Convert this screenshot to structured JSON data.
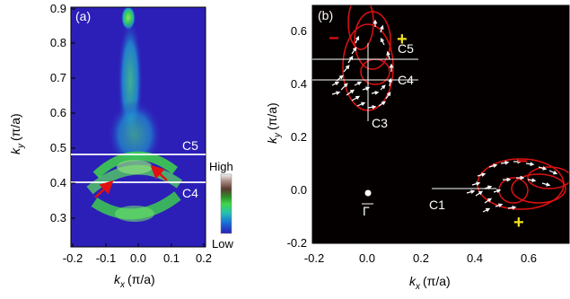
{
  "figure": {
    "panel_a": {
      "label": "(a)",
      "xlabel_k": "k",
      "xlabel_sub": "x",
      "xlabel_unit": "(π/a)",
      "ylabel_k": "k",
      "ylabel_sub": "y",
      "ylabel_unit": "(π/a)",
      "cut_labels": [
        "C5",
        "C4"
      ],
      "colorbar_high": "High",
      "colorbar_low": "Low"
    },
    "panel_b": {
      "label": "(b)",
      "xlabel_k": "k",
      "xlabel_sub": "x",
      "xlabel_unit": "(π/a)",
      "ylabel_k": "k",
      "ylabel_sub": "y",
      "ylabel_unit": "(π/a)",
      "cut_labels": [
        "C5",
        "C4",
        "C3",
        "C1"
      ],
      "gamma_label": "Γ",
      "signs": [
        "−",
        "+",
        "−",
        "+"
      ]
    }
  },
  "chart_data": [
    {
      "type": "heatmap",
      "panel": "(a)",
      "x_ticks": [
        "-0.2",
        "-0.1",
        "0.0",
        "0.1",
        "0.2"
      ],
      "y_ticks": [
        "0.3",
        "0.4",
        "0.5",
        "0.6",
        "0.7",
        "0.8",
        "0.9"
      ],
      "xlim": [
        -0.2,
        0.2
      ],
      "ylim": [
        0.25,
        0.9
      ],
      "cuts": [
        {
          "name": "C5",
          "ky": 0.48
        },
        {
          "name": "C4",
          "ky": 0.4
        }
      ],
      "arrows_toward": [
        {
          "from": [
            -0.14,
            0.33
          ],
          "to": [
            -0.1,
            0.38
          ]
        },
        {
          "from": [
            0.09,
            0.38
          ],
          "to": [
            0.05,
            0.41
          ]
        }
      ],
      "colorbar": {
        "top": "High",
        "bottom": "Low"
      },
      "colors": [
        "#2c1fb8",
        "#1e7bd8",
        "#22c1a0",
        "#3fd648",
        "#a7e07a",
        "#8a6a5a",
        "#d9d9d9"
      ]
    },
    {
      "type": "scatter",
      "panel": "(b)",
      "x_ticks": [
        "-0.2",
        "0.0",
        "0.2",
        "0.4",
        "0.6"
      ],
      "y_ticks": [
        "-0.2",
        "0.0",
        "0.2",
        "0.4",
        "0.6"
      ],
      "xlim": [
        -0.2,
        0.68
      ],
      "ylim": [
        -0.2,
        0.7
      ],
      "cuts": [
        {
          "name": "C5",
          "ky": 0.49,
          "x_range": [
            -0.2,
            0.2
          ]
        },
        {
          "name": "C4",
          "ky": 0.42,
          "x_range": [
            -0.2,
            0.2
          ]
        },
        {
          "name": "C3",
          "kx": 0.0,
          "y_range": [
            0.3,
            0.55
          ]
        },
        {
          "name": "C1",
          "ky": 0.01,
          "x_range": [
            0.35,
            0.57
          ]
        }
      ],
      "gamma_point": [
        0.0,
        0.0
      ],
      "signs": [
        {
          "text": "−",
          "x": -0.12,
          "y": 0.6,
          "color": "#e01010"
        },
        {
          "text": "+",
          "x": 0.12,
          "y": 0.6,
          "color": "#f0e020"
        },
        {
          "text": "−",
          "x": 0.54,
          "y": 0.1,
          "color": "#e01010"
        },
        {
          "text": "+",
          "x": 0.58,
          "y": -0.13,
          "color": "#f0e020"
        }
      ],
      "colors": {
        "background": "#000000",
        "contour": "#dd1111",
        "arrows": "#ffffff"
      }
    }
  ]
}
